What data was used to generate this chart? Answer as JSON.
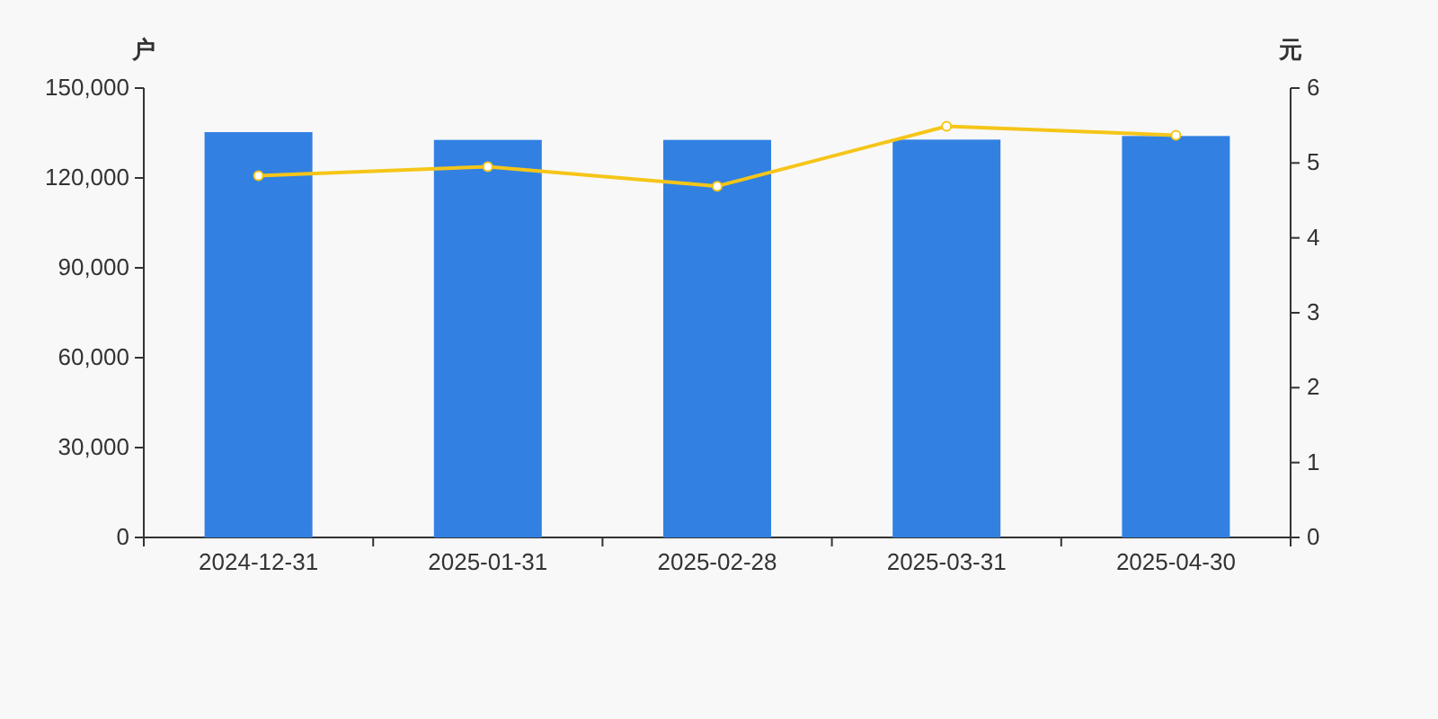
{
  "chart_data": {
    "type": "bar",
    "ylabel": "户",
    "y2label": "元",
    "categories": [
      "2024-12-31",
      "2025-01-31",
      "2025-02-28",
      "2025-03-31",
      "2025-04-30"
    ],
    "series": [
      {
        "color": "#3281e2",
        "values": [
          135300,
          132700,
          132700,
          132800,
          134000
        ]
      },
      {
        "type": "line",
        "axis": "y2",
        "color": "#f5c518",
        "marker": "circle",
        "values": [
          4.83,
          4.95,
          4.69,
          5.49,
          5.37
        ]
      }
    ],
    "ylim": [
      0,
      150000
    ],
    "yticks": [
      0,
      {
        "value": 30000,
        "label": "30,000"
      },
      {
        "value": 60000,
        "label": "60,000"
      },
      {
        "value": 90000,
        "label": "90,000"
      },
      {
        "value": 120000,
        "label": "120,000"
      },
      {
        "value": 150000,
        "label": "150,000"
      }
    ],
    "y2lim": [
      0,
      6
    ],
    "y2ticks": [
      0,
      1,
      2,
      3,
      4,
      5,
      6
    ]
  }
}
